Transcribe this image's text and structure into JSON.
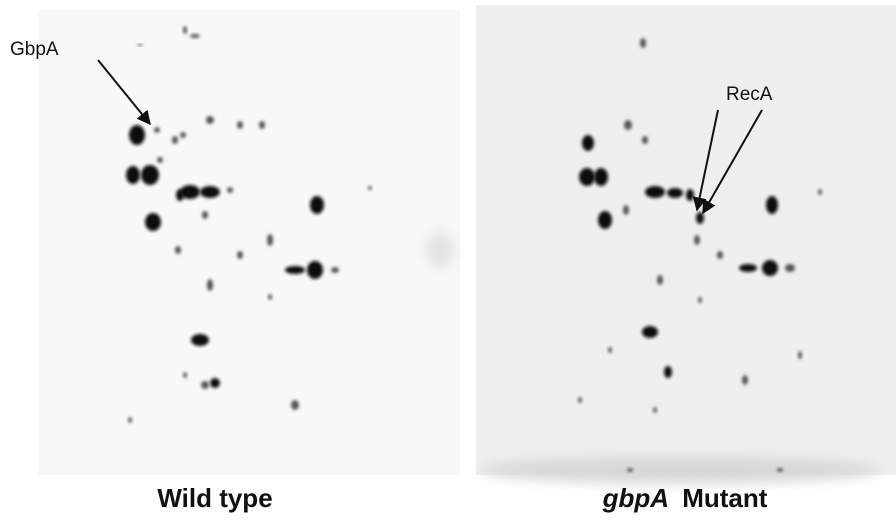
{
  "panels": [
    {
      "caption": "Wild type",
      "annotations": [
        {
          "label": "GbpA"
        }
      ]
    },
    {
      "caption": {
        "italic": "gbpA",
        "text": "Mutant"
      },
      "annotations": [
        {
          "label": "RecA"
        }
      ]
    }
  ]
}
